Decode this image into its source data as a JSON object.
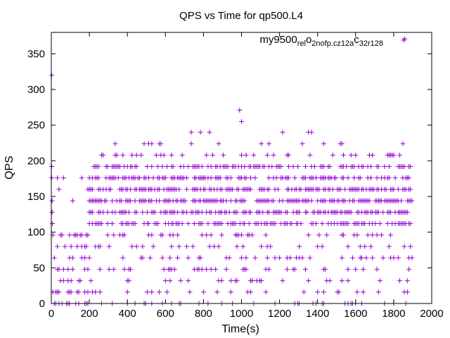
{
  "chart_data": {
    "type": "scatter",
    "title": "QPS vs Time for qp500.L4",
    "xlabel": "Time(s)",
    "ylabel": "QPS",
    "xlim": [
      0,
      2000
    ],
    "ylim": [
      0,
      380
    ],
    "xticks": [
      0,
      200,
      400,
      600,
      800,
      1000,
      1200,
      1400,
      1600,
      1800,
      2000
    ],
    "yticks": [
      0,
      50,
      100,
      150,
      200,
      250,
      300,
      350
    ],
    "grid": false,
    "legend_position": "top-right",
    "marker": "plus",
    "color": "#9400d3",
    "series": [
      {
        "name": "my9500.rel_o2nofp.cz12a_c32r128",
        "name_parts": [
          "my9500",
          "rel",
          "o",
          "2nofp.cz12a",
          "c",
          "32r128"
        ],
        "quantization": [
          0,
          16,
          32,
          48,
          64,
          80,
          96,
          112,
          128,
          144,
          160,
          176,
          192,
          208,
          224,
          240
        ],
        "points": [
          [
            2,
            320
          ],
          [
            2,
            192
          ],
          [
            2,
            176
          ],
          [
            4,
            144
          ],
          [
            4,
            128
          ],
          [
            6,
            112
          ],
          [
            990,
            271
          ],
          [
            1000,
            255
          ],
          [
            1858,
            371
          ]
        ],
        "x_range": [
          0,
          1900
        ]
      }
    ]
  }
}
